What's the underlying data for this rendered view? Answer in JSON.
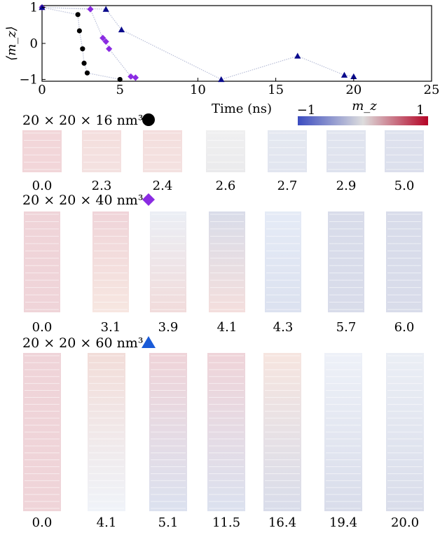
{
  "chart_data": {
    "type": "scatter",
    "xlabel": "Time (ns)",
    "ylabel": "⟨m_z⟩",
    "xlim": [
      0,
      25
    ],
    "ylim": [
      -1.05,
      1.05
    ],
    "xticks": [
      "0",
      "5",
      "10",
      "15",
      "20",
      "25"
    ],
    "yticks": [
      "1",
      "0",
      "−1"
    ],
    "grid": false,
    "series": [
      {
        "marker": "circle",
        "color": "#000000",
        "x": [
          0.0,
          2.3,
          2.4,
          2.6,
          2.7,
          2.9,
          5.0
        ],
        "y": [
          1.0,
          0.8,
          0.35,
          -0.15,
          -0.55,
          -0.82,
          -1.0
        ]
      },
      {
        "marker": "diamond",
        "color": "#8a2be2",
        "x": [
          0.0,
          3.1,
          3.9,
          4.1,
          4.3,
          5.7,
          6.0
        ],
        "y": [
          1.0,
          0.95,
          0.15,
          0.05,
          -0.15,
          -0.92,
          -0.95
        ]
      },
      {
        "marker": "triangle",
        "color": "#0a0a8c",
        "x": [
          0.0,
          4.1,
          5.1,
          11.5,
          16.4,
          19.4,
          20.0
        ],
        "y": [
          1.0,
          0.95,
          0.38,
          -1.0,
          -0.35,
          -0.88,
          -0.92
        ]
      }
    ],
    "colorbar": {
      "label": "m_z",
      "min_label": "−1",
      "max_label": "1",
      "colors": [
        "#3b4cc0",
        "#dddddd",
        "#b40426"
      ]
    }
  },
  "panels": [
    {
      "title": "20 × 20 × 16 nm³",
      "marker": "circle",
      "marker_color": "#000000",
      "times": [
        "0.0",
        "2.3",
        "2.4",
        "2.6",
        "2.7",
        "2.9",
        "5.0"
      ],
      "colors": [
        [
          "#b51a2d",
          "#b51a2d"
        ],
        [
          "#c54a45",
          "#c25a55"
        ],
        [
          "#c24a48",
          "#c45a52"
        ],
        [
          "#a9a9b0",
          "#8c8c96"
        ],
        [
          "#6e83b2",
          "#5a6ea8"
        ],
        [
          "#5a6ea8",
          "#4a5ea0"
        ],
        [
          "#4a5ea0",
          "#3a4e98"
        ]
      ]
    },
    {
      "title": "20 × 20 × 40 nm³",
      "marker": "diamond",
      "marker_color": "#8a2be2",
      "times": [
        "0.0",
        "3.1",
        "3.9",
        "4.1",
        "4.3",
        "5.7",
        "6.0"
      ],
      "colors": [
        [
          "#a8102a",
          "#a8102a"
        ],
        [
          "#a8102a",
          "#d27858"
        ],
        [
          "#8fa3c8",
          "#b33a38"
        ],
        [
          "#2c3f86",
          "#c24a40"
        ],
        [
          "#6f8fcf",
          "#3a5aa8"
        ],
        [
          "#2a3f8c",
          "#2a3f8c"
        ],
        [
          "#2a3f8c",
          "#2a3f8c"
        ]
      ]
    },
    {
      "title": "20 × 20 × 60 nm³",
      "marker": "triangle",
      "marker_color": "#1a5bd8",
      "times": [
        "0.0",
        "4.1",
        "5.1",
        "11.5",
        "16.4",
        "19.4",
        "20.0"
      ],
      "colors": [
        [
          "#a8102a",
          "#a8102a"
        ],
        [
          "#b8402a",
          "#a9bedd"
        ],
        [
          "#a8102a",
          "#3a5aa8"
        ],
        [
          "#a8102a",
          "#3a5aa8"
        ],
        [
          "#d07050",
          "#2a3f8c"
        ],
        [
          "#9fb2d8",
          "#2a3f8c"
        ],
        [
          "#8fa3c8",
          "#2a3f8c"
        ]
      ]
    }
  ]
}
